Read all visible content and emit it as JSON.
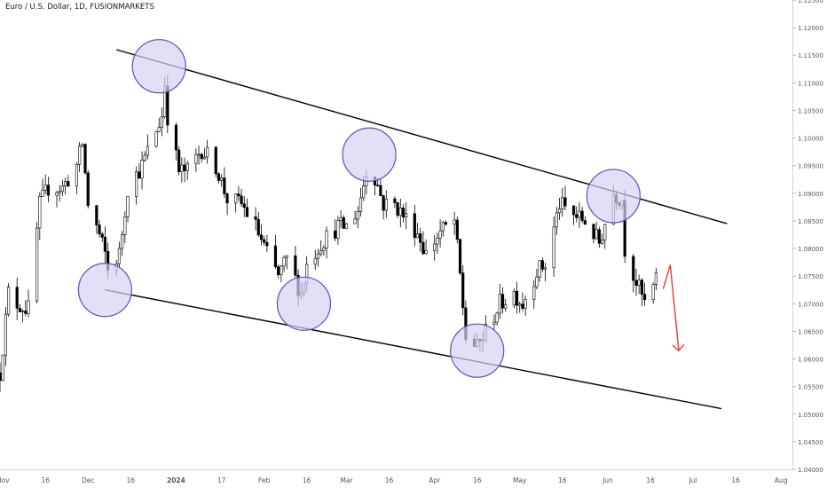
{
  "header": {
    "title": "Euro / U.S. Dollar, 1D, FUSIONMARKETS"
  },
  "colors": {
    "up": "#ffffff",
    "down": "#000000",
    "outline": "#000000",
    "circle_fill": "#d9d2f2",
    "circle_stroke": "#5b4fc4",
    "arrow": "#e53935",
    "axis_text": "#555555",
    "axis_line": "#d0d3da"
  },
  "chart_data": {
    "type": "candlestick",
    "title": "Euro / U.S. Dollar, 1D, FUSIONMARKETS",
    "xlabel": "",
    "ylabel": "",
    "ylim": [
      1.04,
      1.125
    ],
    "xlim": [
      "2023-10-31",
      "2024-08-05"
    ],
    "y_ticks": [
      "1.04000",
      "1.04500",
      "1.05000",
      "1.05500",
      "1.06000",
      "1.06500",
      "1.07000",
      "1.07500",
      "1.08000",
      "1.08500",
      "1.09000",
      "1.09500",
      "1.10000",
      "1.10500",
      "1.11000",
      "1.11500",
      "1.12000",
      "1.12500"
    ],
    "x_ticks": [
      {
        "date": "2023-11-01",
        "label": "Nov"
      },
      {
        "date": "2023-11-16",
        "label": "16"
      },
      {
        "date": "2023-12-01",
        "label": "Dec"
      },
      {
        "date": "2023-12-16",
        "label": "16"
      },
      {
        "date": "2024-01-01",
        "label": "2024"
      },
      {
        "date": "2024-01-17",
        "label": "17"
      },
      {
        "date": "2024-02-01",
        "label": "Feb"
      },
      {
        "date": "2024-02-16",
        "label": "16"
      },
      {
        "date": "2024-03-01",
        "label": "Mar"
      },
      {
        "date": "2024-03-16",
        "label": "16"
      },
      {
        "date": "2024-04-01",
        "label": "Apr"
      },
      {
        "date": "2024-04-16",
        "label": "16"
      },
      {
        "date": "2024-05-01",
        "label": "May"
      },
      {
        "date": "2024-05-16",
        "label": "16"
      },
      {
        "date": "2024-06-01",
        "label": "Jun"
      },
      {
        "date": "2024-06-16",
        "label": "16"
      },
      {
        "date": "2024-07-01",
        "label": "Jul"
      },
      {
        "date": "2024-07-16",
        "label": "16"
      },
      {
        "date": "2024-08-01",
        "label": "Aug"
      }
    ],
    "close_path": [
      [
        "2023-10-31",
        1.0575
      ],
      [
        "2023-11-03",
        1.072
      ],
      [
        "2023-11-06",
        1.07
      ],
      [
        "2023-11-10",
        1.069
      ],
      [
        "2023-11-14",
        1.088
      ],
      [
        "2023-11-17",
        1.091
      ],
      [
        "2023-11-22",
        1.091
      ],
      [
        "2023-11-27",
        1.095
      ],
      [
        "2023-11-29",
        1.099
      ],
      [
        "2023-12-01",
        1.088
      ],
      [
        "2023-12-04",
        1.084
      ],
      [
        "2023-12-07",
        1.079
      ],
      [
        "2023-12-08",
        1.076
      ],
      [
        "2023-12-12",
        1.079
      ],
      [
        "2023-12-15",
        1.091
      ],
      [
        "2023-12-20",
        1.095
      ],
      [
        "2023-12-27",
        1.104
      ],
      [
        "2023-12-28",
        1.11
      ],
      [
        "2023-12-29",
        1.104
      ],
      [
        "2024-01-02",
        1.094
      ],
      [
        "2024-01-05",
        1.094
      ],
      [
        "2024-01-10",
        1.098
      ],
      [
        "2024-01-15",
        1.095
      ],
      [
        "2024-01-19",
        1.089
      ],
      [
        "2024-01-24",
        1.088
      ],
      [
        "2024-01-29",
        1.084
      ],
      [
        "2024-02-02",
        1.079
      ],
      [
        "2024-02-06",
        1.075
      ],
      [
        "2024-02-09",
        1.078
      ],
      [
        "2024-02-14",
        1.072
      ],
      [
        "2024-02-16",
        1.077
      ],
      [
        "2024-02-21",
        1.081
      ],
      [
        "2024-02-27",
        1.084
      ],
      [
        "2024-03-01",
        1.084
      ],
      [
        "2024-03-05",
        1.087
      ],
      [
        "2024-03-08",
        1.094
      ],
      [
        "2024-03-11",
        1.093
      ],
      [
        "2024-03-14",
        1.088
      ],
      [
        "2024-03-18",
        1.088
      ],
      [
        "2024-03-21",
        1.086
      ],
      [
        "2024-03-26",
        1.083
      ],
      [
        "2024-03-29",
        1.079
      ],
      [
        "2024-04-03",
        1.083
      ],
      [
        "2024-04-08",
        1.085
      ],
      [
        "2024-04-10",
        1.075
      ],
      [
        "2024-04-12",
        1.064
      ],
      [
        "2024-04-16",
        1.062
      ],
      [
        "2024-04-19",
        1.065
      ],
      [
        "2024-04-24",
        1.07
      ],
      [
        "2024-04-29",
        1.072
      ],
      [
        "2024-05-02",
        1.07
      ],
      [
        "2024-05-07",
        1.076
      ],
      [
        "2024-05-10",
        1.077
      ],
      [
        "2024-05-15",
        1.088
      ],
      [
        "2024-05-20",
        1.086
      ],
      [
        "2024-05-24",
        1.085
      ],
      [
        "2024-05-29",
        1.081
      ],
      [
        "2024-06-03",
        1.09
      ],
      [
        "2024-06-06",
        1.089
      ],
      [
        "2024-06-07",
        1.08
      ],
      [
        "2024-06-11",
        1.074
      ],
      [
        "2024-06-14",
        1.07
      ],
      [
        "2024-06-18",
        1.074
      ]
    ],
    "trendlines": [
      {
        "name": "upper-channel-line",
        "p1": [
          "2023-12-11",
          1.116
        ],
        "p2": [
          "2024-07-13",
          1.0845
        ]
      },
      {
        "name": "lower-channel-line",
        "p1": [
          "2023-12-07",
          1.0725
        ],
        "p2": [
          "2024-07-11",
          1.051
        ]
      }
    ],
    "circles": [
      {
        "name": "peak-circle-dec",
        "center": [
          "2023-12-26",
          1.113
        ]
      },
      {
        "name": "trough-circle-dec",
        "center": [
          "2023-12-07",
          1.0725
        ]
      },
      {
        "name": "peak-circle-mar",
        "center": [
          "2024-03-09",
          1.097
        ]
      },
      {
        "name": "trough-circle-feb",
        "center": [
          "2024-02-15",
          1.07
        ]
      },
      {
        "name": "trough-circle-apr",
        "center": [
          "2024-04-16",
          1.0615
        ]
      },
      {
        "name": "peak-circle-jun",
        "center": [
          "2024-06-03",
          1.0895
        ]
      }
    ],
    "arrow": {
      "name": "projection-arrow",
      "from": [
        "2024-06-23",
        1.077
      ],
      "to": [
        "2024-06-26",
        1.0615
      ]
    }
  }
}
